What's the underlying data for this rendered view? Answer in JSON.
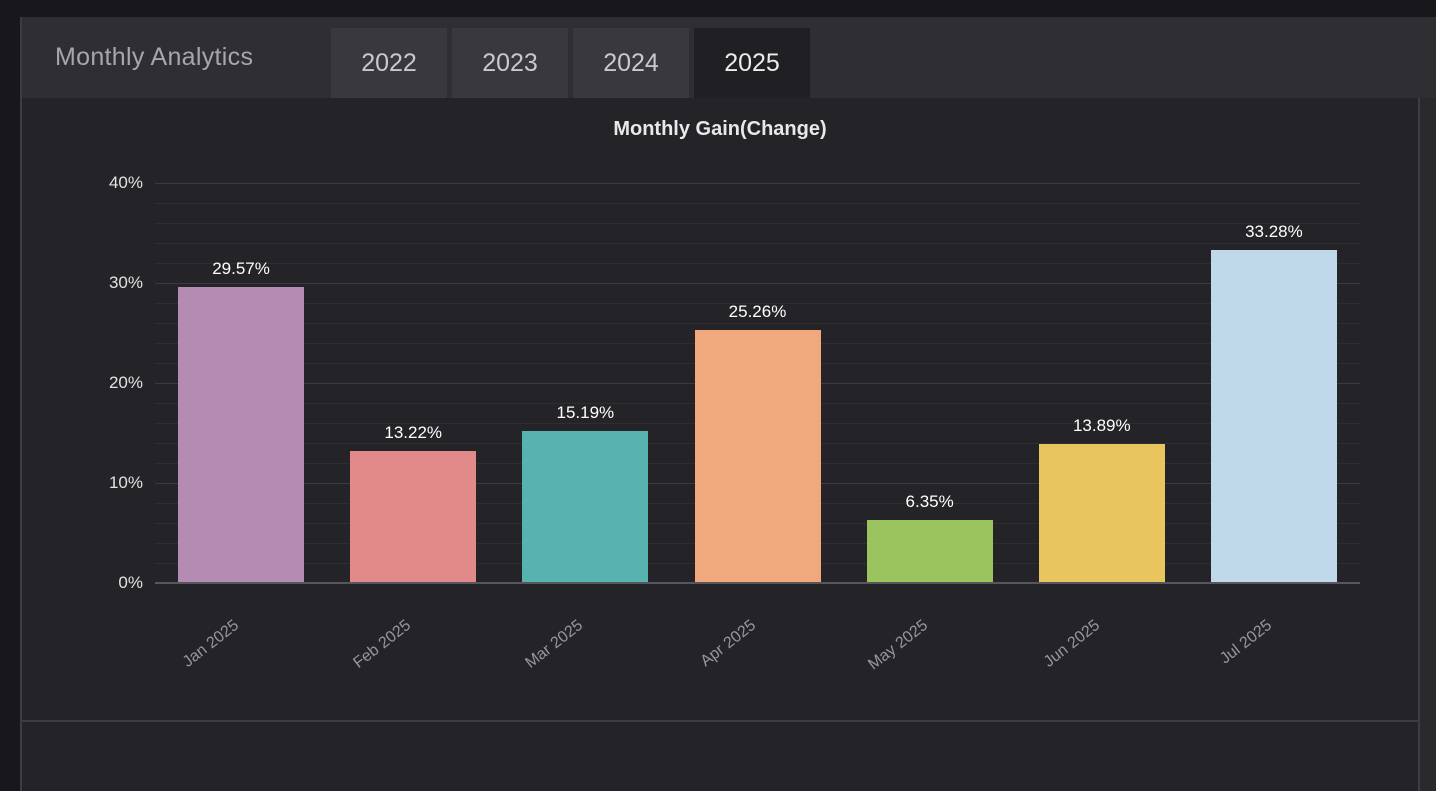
{
  "header": {
    "title": "Monthly Analytics",
    "tabs": [
      {
        "label": "2022",
        "active": false
      },
      {
        "label": "2023",
        "active": false
      },
      {
        "label": "2024",
        "active": false
      },
      {
        "label": "2025",
        "active": true
      }
    ]
  },
  "chart_data": {
    "type": "bar",
    "title": "Monthly Gain(Change)",
    "categories": [
      "Jan 2025",
      "Feb 2025",
      "Mar 2025",
      "Apr 2025",
      "May 2025",
      "Jun 2025",
      "Jul 2025"
    ],
    "values": [
      29.57,
      13.22,
      15.19,
      25.26,
      6.35,
      13.89,
      33.28
    ],
    "value_labels": [
      "29.57%",
      "13.22%",
      "15.19%",
      "25.26%",
      "6.35%",
      "13.89%",
      "33.28%"
    ],
    "bar_colors": [
      "#b48bb3",
      "#e28a8a",
      "#58b3b0",
      "#f0a97d",
      "#9cc45e",
      "#e9c55e",
      "#bfd8ea"
    ],
    "ylim": [
      0,
      40
    ],
    "yticks_major": [
      0,
      10,
      20,
      30,
      40
    ],
    "ytick_labels": [
      "0%",
      "10%",
      "20%",
      "30%",
      "40%"
    ],
    "minor_grid_step": 2,
    "grid": true,
    "legend": false,
    "xlabel": "",
    "ylabel": ""
  },
  "colors": {
    "page_bg": "#18181c",
    "header_bg": "#2f2f33",
    "panel_bg": "#242428",
    "tab_bg": "#39393d",
    "tab_active_bg": "#202024",
    "border": "#3c3c42",
    "grid_minor": "#2d2d32",
    "grid_major": "#3a3a3f",
    "axis_line": "#56565c",
    "title_color": "#e8e8ea",
    "ytick_color": "#e2e2e4",
    "xtick_color": "#96969c",
    "value_label_color": "#ffffff"
  }
}
